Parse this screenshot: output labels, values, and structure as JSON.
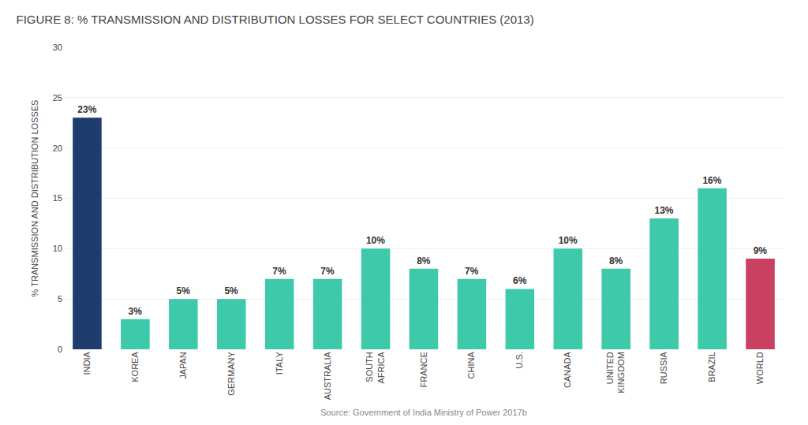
{
  "chart_data": {
    "type": "bar",
    "title": "FIGURE 8: % TRANSMISSION AND DISTRIBUTION LOSSES FOR SELECT COUNTRIES (2013)",
    "ylabel": "% TRANSMISSION AND DISTRIBUTION LOSSES",
    "annotations": [
      "Source: Government of India Ministry of Power 2017b"
    ],
    "categories": [
      "INDIA",
      "KOREA",
      "JAPAN",
      "GERMANY",
      "ITALY",
      "AUSTRALIA",
      "SOUTH\nAFRICA",
      "FRANCE",
      "CHINA",
      "U.S.",
      "CANADA",
      "UNITED\nKINGDOM",
      "RUSSIA",
      "BRAZIL",
      "WORLD"
    ],
    "values": [
      23,
      3,
      5,
      5,
      7,
      7,
      10,
      8,
      7,
      6,
      10,
      8,
      13,
      16,
      9
    ],
    "value_labels": [
      "23%",
      "3%",
      "5%",
      "5%",
      "7%",
      "7%",
      "10%",
      "8%",
      "7%",
      "6%",
      "10%",
      "8%",
      "13%",
      "16%",
      "9%"
    ],
    "data_labels": true,
    "colors": [
      "#1e3d6e",
      "#3ec9aa",
      "#3ec9aa",
      "#3ec9aa",
      "#3ec9aa",
      "#3ec9aa",
      "#3ec9aa",
      "#3ec9aa",
      "#3ec9aa",
      "#3ec9aa",
      "#3ec9aa",
      "#3ec9aa",
      "#3ec9aa",
      "#3ec9aa",
      "#c94060"
    ],
    "ylim": [
      0,
      30
    ],
    "yticks": [
      0,
      5,
      10,
      15,
      20,
      25,
      30
    ],
    "grid": true
  }
}
